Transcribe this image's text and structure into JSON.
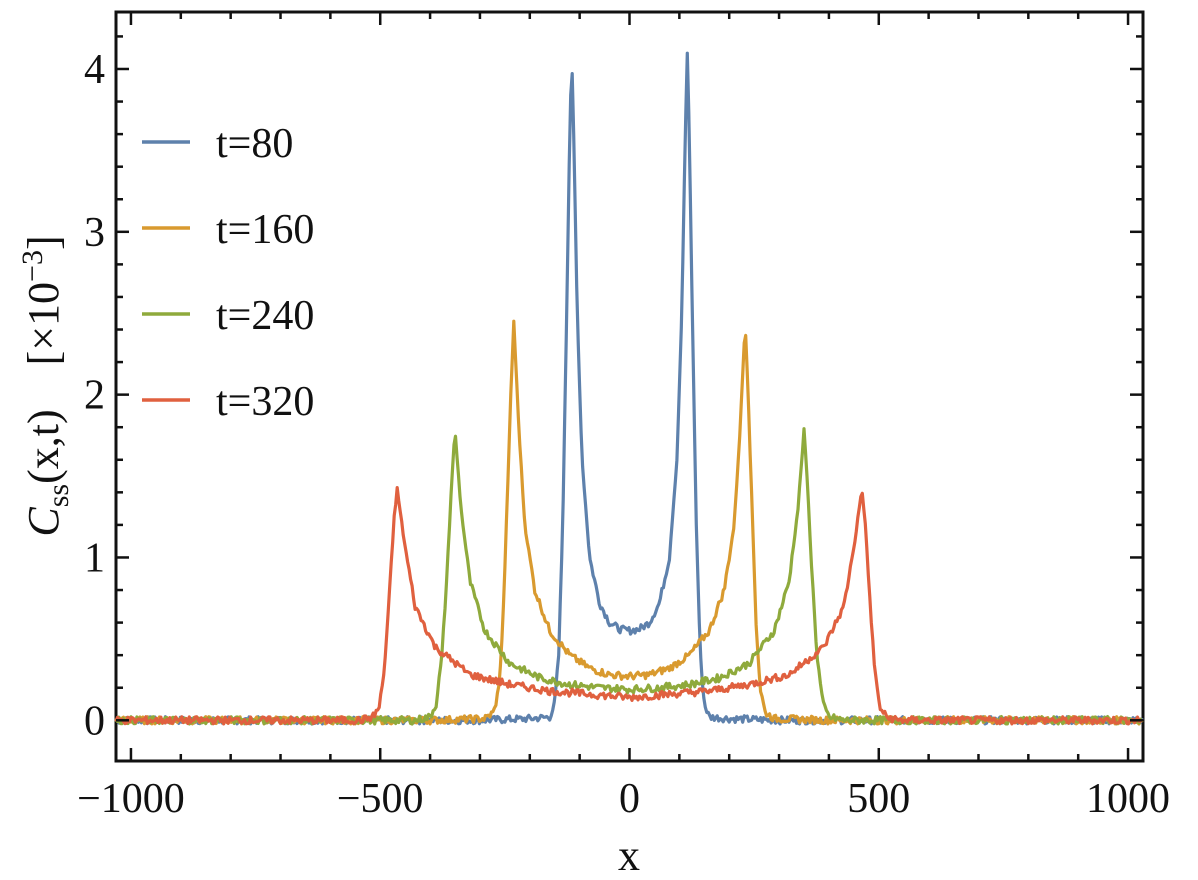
{
  "chart_data": {
    "type": "line",
    "xlabel": "x",
    "ylabel": {
      "symbol": "C",
      "subscript": "ss",
      "args": "(x,t)",
      "scale": "[×10",
      "scale_exp": "−3",
      "scale_close": "]"
    },
    "xlim": [
      -1030,
      1030
    ],
    "ylim": [
      -0.25,
      4.35
    ],
    "x_ticks": [
      -1000,
      -500,
      0,
      500,
      1000
    ],
    "x_tick_labels": [
      "−1000",
      "−500",
      "0",
      "500",
      "1000"
    ],
    "y_ticks": [
      0,
      1,
      2,
      3,
      4
    ],
    "y_tick_labels": [
      "0",
      "1",
      "2",
      "3",
      "4"
    ],
    "grid": false,
    "legend_position": "top-left",
    "series": [
      {
        "name": "t=80",
        "color": "#5e81ac",
        "peak_x": 116,
        "points": [
          [
            0,
            0.55
          ],
          [
            20,
            0.56
          ],
          [
            40,
            0.6
          ],
          [
            60,
            0.72
          ],
          [
            80,
            1.0
          ],
          [
            95,
            1.6
          ],
          [
            105,
            2.5
          ],
          [
            112,
            3.6
          ],
          [
            116,
            4.1
          ],
          [
            120,
            3.6
          ],
          [
            126,
            2.5
          ],
          [
            134,
            1.2
          ],
          [
            142,
            0.4
          ],
          [
            150,
            0.1
          ],
          [
            160,
            0.02
          ],
          [
            200,
            0.01
          ],
          [
            300,
            0.0
          ],
          [
            500,
            0.0
          ],
          [
            1030,
            0.0
          ]
        ]
      },
      {
        "name": "t=160",
        "color": "#d99a2f",
        "peak_x": 232,
        "points": [
          [
            0,
            0.27
          ],
          [
            40,
            0.28
          ],
          [
            80,
            0.32
          ],
          [
            120,
            0.4
          ],
          [
            160,
            0.55
          ],
          [
            190,
            0.8
          ],
          [
            210,
            1.2
          ],
          [
            222,
            1.8
          ],
          [
            232,
            2.45
          ],
          [
            238,
            2.0
          ],
          [
            246,
            1.3
          ],
          [
            254,
            0.6
          ],
          [
            262,
            0.2
          ],
          [
            272,
            0.05
          ],
          [
            290,
            0.01
          ],
          [
            400,
            0.0
          ],
          [
            1030,
            0.0
          ]
        ]
      },
      {
        "name": "t=240",
        "color": "#8faa3c",
        "peak_x": 350,
        "points": [
          [
            0,
            0.19
          ],
          [
            60,
            0.2
          ],
          [
            120,
            0.22
          ],
          [
            180,
            0.26
          ],
          [
            240,
            0.35
          ],
          [
            290,
            0.55
          ],
          [
            320,
            0.85
          ],
          [
            338,
            1.3
          ],
          [
            350,
            1.78
          ],
          [
            356,
            1.5
          ],
          [
            366,
            0.9
          ],
          [
            376,
            0.4
          ],
          [
            388,
            0.1
          ],
          [
            400,
            0.02
          ],
          [
            430,
            0.0
          ],
          [
            1030,
            0.0
          ]
        ]
      },
      {
        "name": "t=320",
        "color": "#e0603f",
        "peak_x": 466,
        "points": [
          [
            0,
            0.14
          ],
          [
            80,
            0.16
          ],
          [
            160,
            0.18
          ],
          [
            240,
            0.22
          ],
          [
            320,
            0.28
          ],
          [
            390,
            0.45
          ],
          [
            430,
            0.7
          ],
          [
            452,
            1.1
          ],
          [
            466,
            1.42
          ],
          [
            472,
            1.25
          ],
          [
            482,
            0.75
          ],
          [
            492,
            0.3
          ],
          [
            502,
            0.08
          ],
          [
            515,
            0.02
          ],
          [
            540,
            0.0
          ],
          [
            1030,
            0.0
          ]
        ]
      }
    ]
  }
}
